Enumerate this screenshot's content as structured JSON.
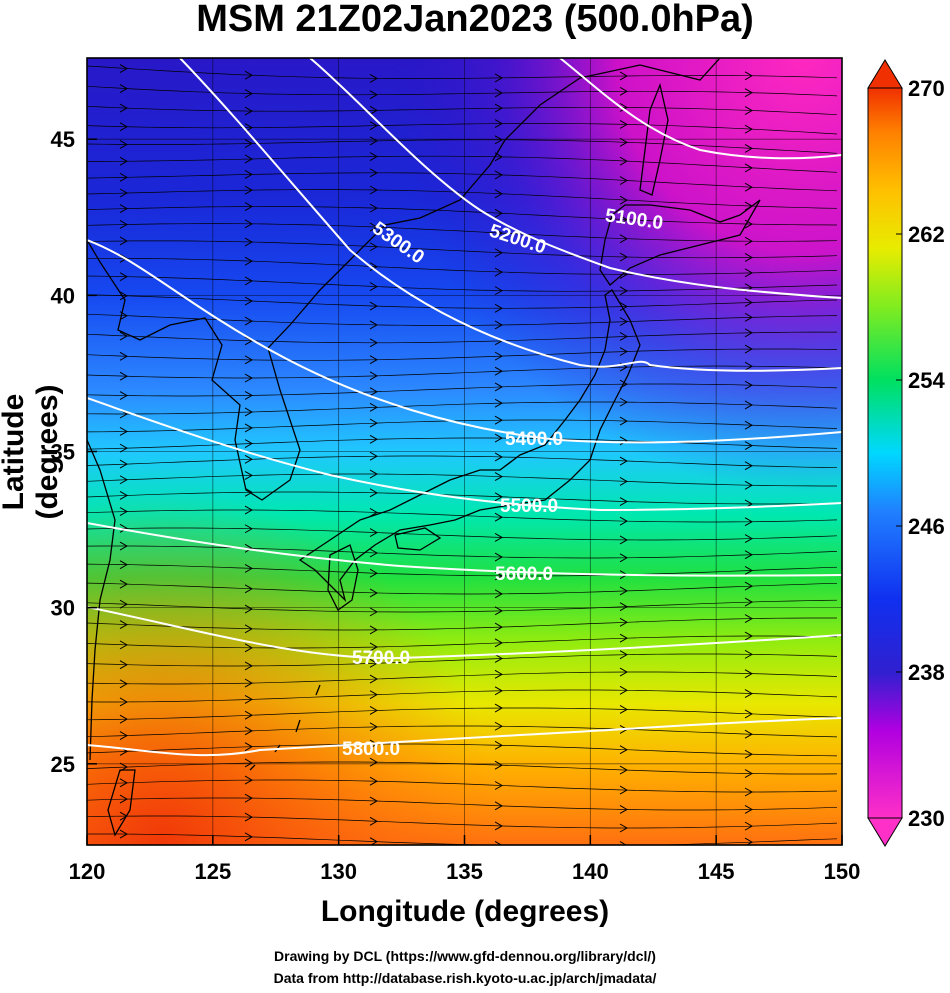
{
  "title": "MSM 21Z02Jan2023 (500.0hPa)",
  "x_axis_label": "Longitude (degrees)",
  "y_axis_label": "Latitude  (degrees)",
  "x_ticks": [
    "120",
    "125",
    "130",
    "135",
    "140",
    "145",
    "150"
  ],
  "y_ticks": [
    "25",
    "30",
    "35",
    "40",
    "45"
  ],
  "colorbar_ticks": [
    "230",
    "238",
    "246",
    "254",
    "262",
    "270"
  ],
  "credits": {
    "line1": "Drawing by DCL (https://www.gfd-dennou.org/library/dcl/)",
    "line2": "Data from http://database.rish.kyoto-u.ac.jp/arch/jmadata/"
  },
  "contour_labels": [
    "5100.0",
    "5200.0",
    "5300.0",
    "5400.0",
    "5500.0",
    "5600.0",
    "5700.0",
    "5800.0"
  ],
  "map_data": {
    "projection": "equirectangular",
    "lon_range": [
      120,
      150
    ],
    "lat_range": [
      22.4,
      47.6
    ],
    "shaded_field": "temperature",
    "shade_range": [
      230,
      270
    ],
    "contour_field": "geopotential height",
    "contour_interval": 100,
    "vectors": "wind streamlines (westerly)"
  },
  "colors": {
    "colorbar": [
      "#ff30c8",
      "#b000e0",
      "#3020d0",
      "#1030f0",
      "#2080ff",
      "#00d8ff",
      "#00e060",
      "#80ec20",
      "#e8ec00",
      "#ffc000",
      "#ff8000",
      "#f03000"
    ]
  }
}
